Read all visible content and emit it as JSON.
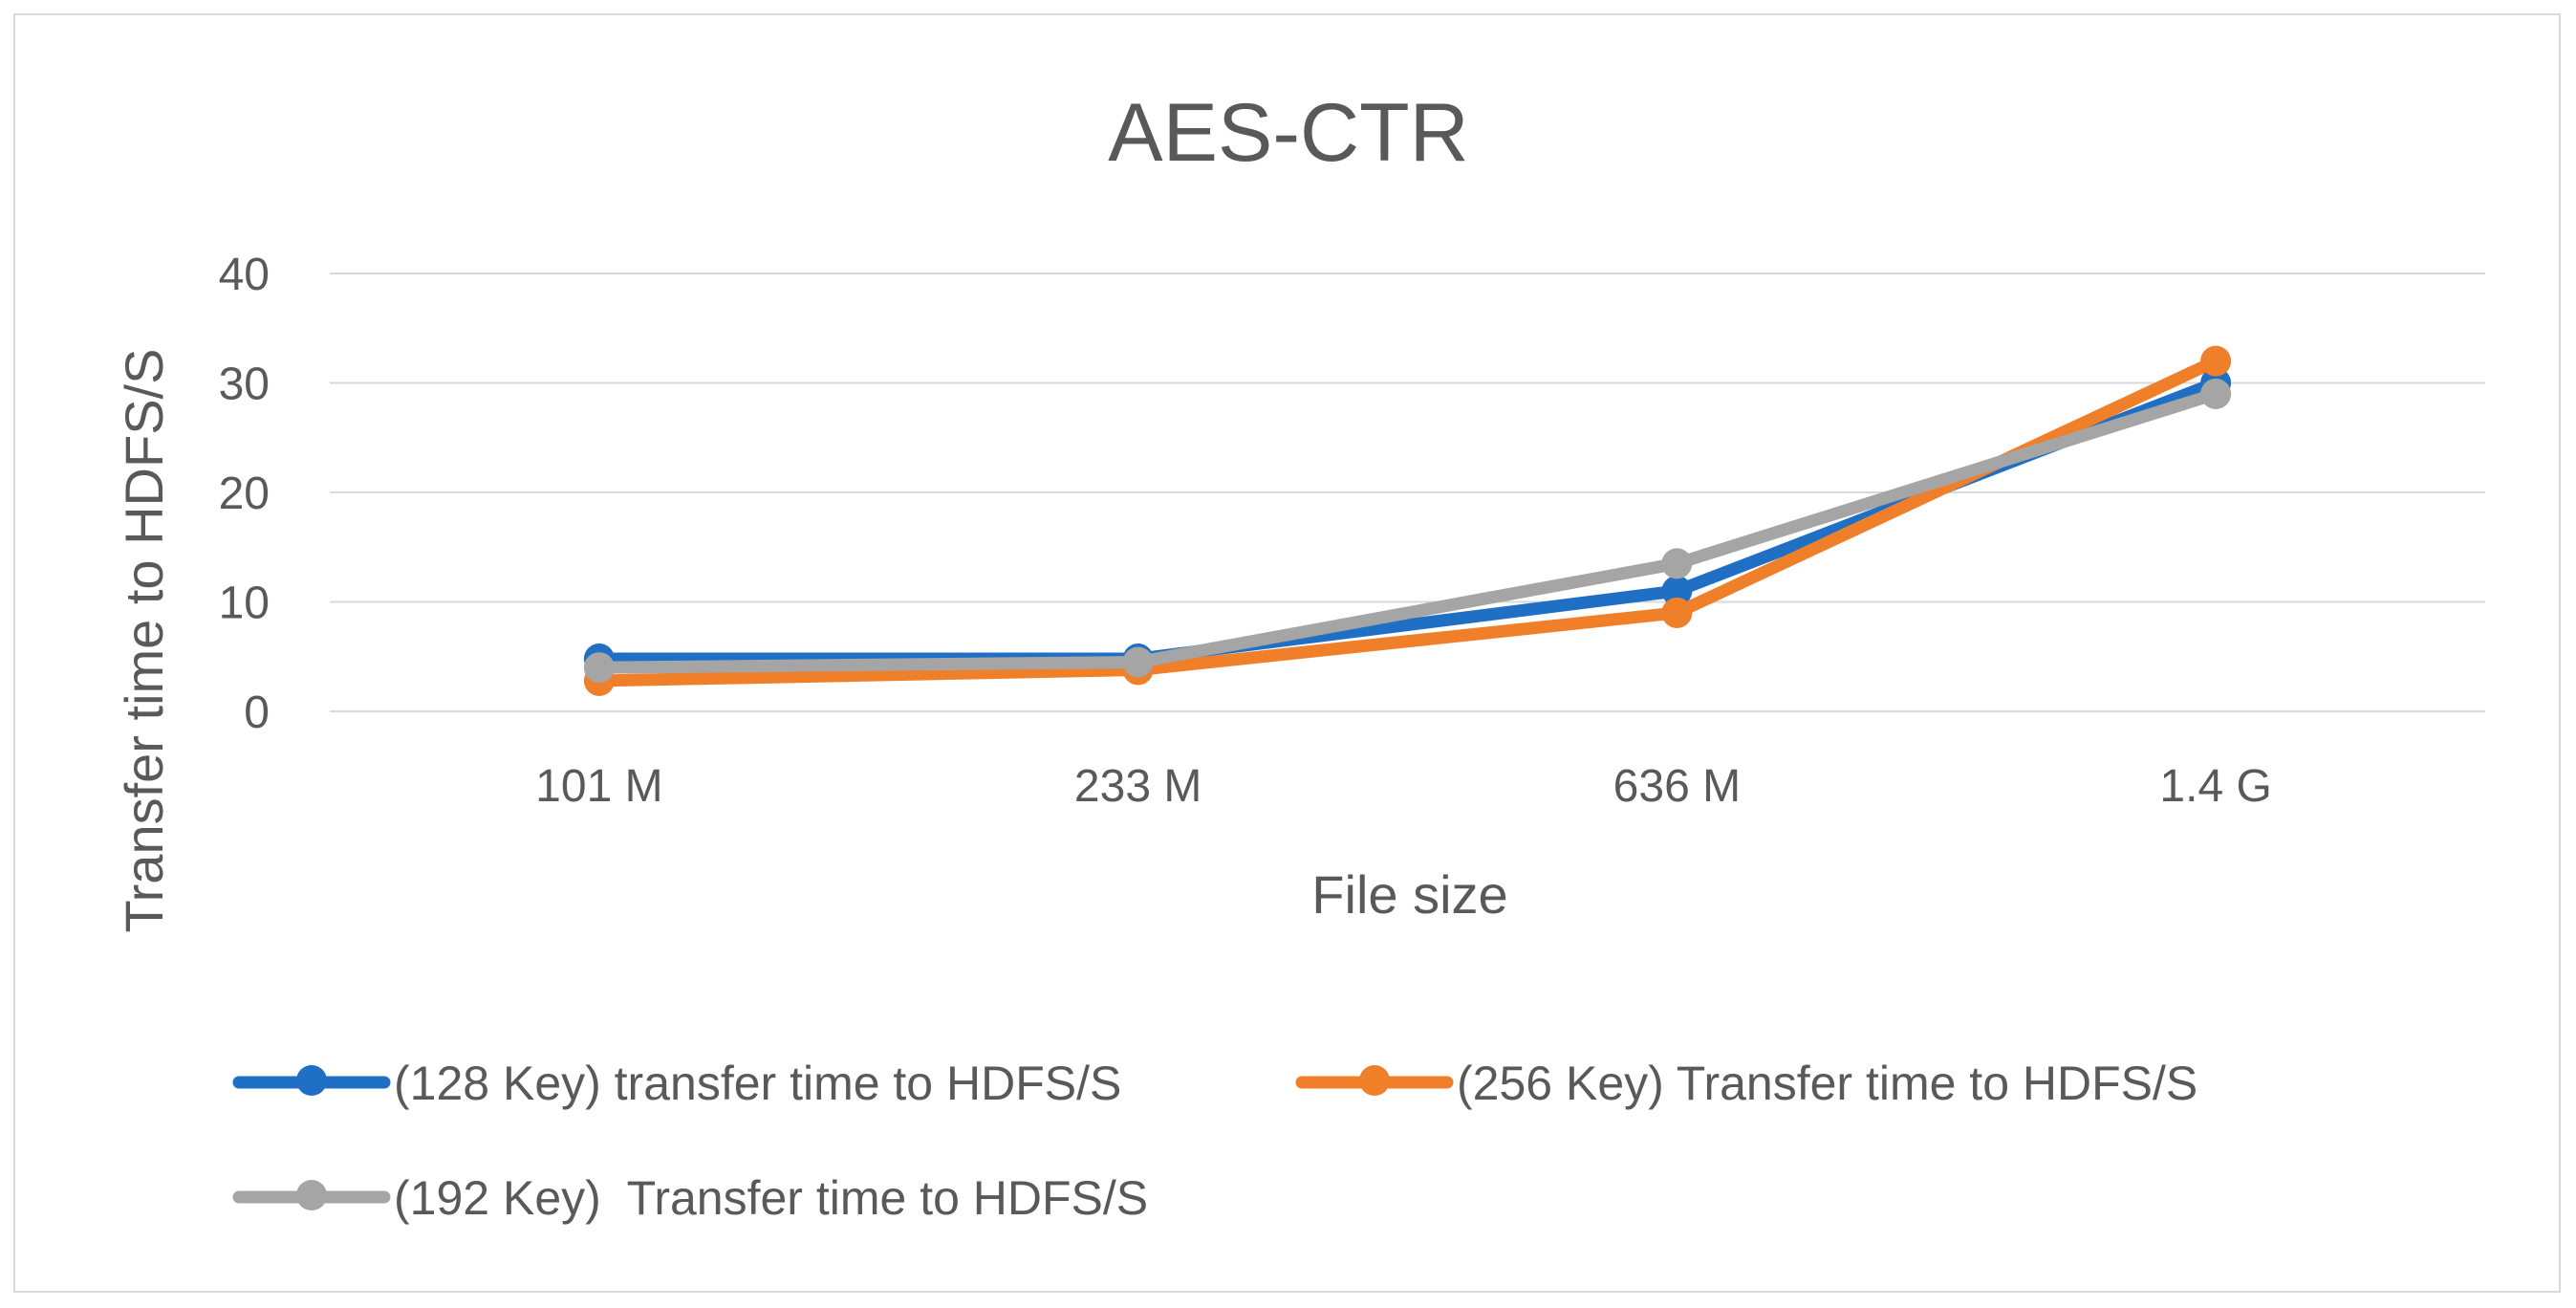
{
  "chart_data": {
    "type": "line",
    "title": "AES-CTR",
    "xlabel": "File size",
    "ylabel": "Transfer time to HDFS/S",
    "categories": [
      "101 M",
      "233 M",
      "636 M",
      "1.4 G"
    ],
    "ylim": [
      0,
      40
    ],
    "yticks": [
      0,
      10,
      20,
      30,
      40
    ],
    "grid": true,
    "legend_position": "bottom",
    "series": [
      {
        "name": "(128 Key) transfer time to HDFS/S",
        "values": [
          4.8,
          4.8,
          11,
          30
        ],
        "color": "#1f6fc5"
      },
      {
        "name": "(256 Key) Transfer time to HDFS/S",
        "values": [
          2.8,
          3.8,
          9,
          32
        ],
        "color": "#f07f2a"
      },
      {
        "name": "(192 Key)  Transfer time to HDFS/S",
        "values": [
          4,
          4.5,
          13.5,
          29
        ],
        "color": "#a5a5a5"
      }
    ]
  }
}
